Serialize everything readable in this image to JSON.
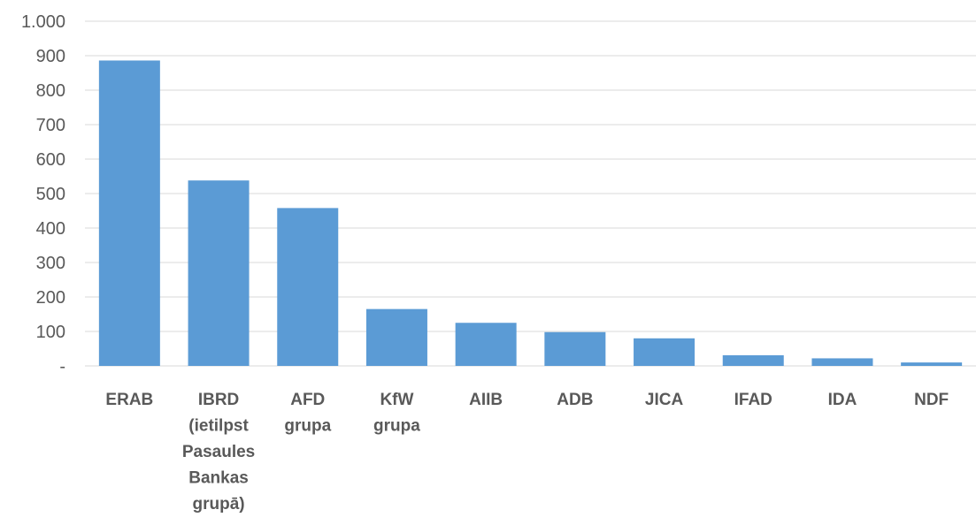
{
  "chart_data": {
    "type": "bar",
    "title": "",
    "xlabel": "",
    "ylabel": "",
    "ylim": [
      0,
      1000
    ],
    "grid": true,
    "legend": "none",
    "y_ticks": [
      {
        "value": 0,
        "label": "-"
      },
      {
        "value": 100,
        "label": "100"
      },
      {
        "value": 200,
        "label": "200"
      },
      {
        "value": 300,
        "label": "300"
      },
      {
        "value": 400,
        "label": "400"
      },
      {
        "value": 500,
        "label": "500"
      },
      {
        "value": 600,
        "label": "600"
      },
      {
        "value": 700,
        "label": "700"
      },
      {
        "value": 800,
        "label": "800"
      },
      {
        "value": 900,
        "label": "900"
      },
      {
        "value": 1000,
        "label": "1.000"
      }
    ],
    "categories": [
      [
        "ERAB"
      ],
      [
        "IBRD",
        "(ietilpst",
        "Pasaules",
        "Bankas",
        "grupā)"
      ],
      [
        "AFD",
        "grupa"
      ],
      [
        "KfW",
        "grupa"
      ],
      [
        "AIIB"
      ],
      [
        "ADB"
      ],
      [
        "JICA"
      ],
      [
        "IFAD"
      ],
      [
        "IDA"
      ],
      [
        "NDF"
      ]
    ],
    "values": [
      886,
      538,
      458,
      165,
      125,
      98,
      80,
      31,
      22,
      10
    ],
    "bar_color": "#5b9bd5"
  }
}
